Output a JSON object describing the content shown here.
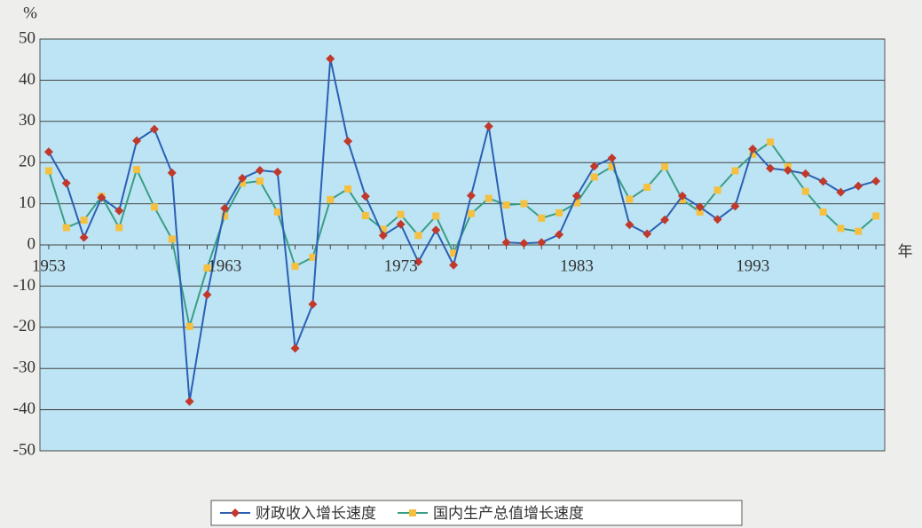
{
  "chart_data": {
    "type": "line",
    "y_unit": "%",
    "x_unit": "年",
    "x": [
      1953,
      1954,
      1955,
      1956,
      1957,
      1958,
      1959,
      1960,
      1961,
      1962,
      1963,
      1964,
      1965,
      1966,
      1967,
      1968,
      1969,
      1970,
      1971,
      1972,
      1973,
      1974,
      1975,
      1976,
      1977,
      1978,
      1979,
      1980,
      1981,
      1982,
      1983,
      1984,
      1985,
      1986,
      1987,
      1988,
      1989,
      1990,
      1991,
      1992,
      1993,
      1994,
      1995,
      1996,
      1997,
      1998,
      1999,
      2000
    ],
    "xlim": [
      1952.5,
      2000.5
    ],
    "xticks": [
      1953,
      1963,
      1973,
      1983,
      1993
    ],
    "ylim": [
      -50,
      50
    ],
    "yticks": [
      -50,
      -40,
      -30,
      -20,
      -10,
      0,
      10,
      20,
      30,
      40,
      50
    ],
    "grid": true,
    "legend": "bottom",
    "series": [
      {
        "name": "财政收入增长速度",
        "color": "#2b5fb4",
        "marker_color": "#c0392b",
        "marker": "diamond",
        "values": [
          22.6,
          15,
          1.8,
          11.5,
          8.3,
          25.3,
          28.1,
          17.5,
          -38,
          -12.1,
          8.9,
          16.2,
          18.1,
          17.7,
          -25.1,
          -14.4,
          45.2,
          25.2,
          11.8,
          2.3,
          5,
          -4.1,
          3.6,
          -4.9,
          12,
          28.8,
          0.6,
          0.4,
          0.6,
          2.5,
          11.9,
          19.1,
          21.1,
          4.9,
          2.7,
          6.1,
          11.9,
          9.2,
          6.2,
          9.4,
          23.3,
          18.6,
          18.1,
          17.3,
          15.4,
          12.8,
          14.3,
          15.5
        ]
      },
      {
        "name": "国内生产总值增长速度",
        "color": "#3a9e86",
        "marker_color": "#f5c040",
        "marker": "square",
        "values": [
          18,
          4.2,
          6,
          11.8,
          4.2,
          18.3,
          9.2,
          1.4,
          -19.8,
          -5.6,
          7,
          15,
          15.5,
          8,
          -5.2,
          -3,
          11,
          13.6,
          7.1,
          3.8,
          7.4,
          2.3,
          7,
          -2,
          7.6,
          11.3,
          9.7,
          10,
          6.5,
          7.8,
          10.2,
          16.5,
          19,
          11.1,
          14,
          19,
          11,
          8,
          13.3,
          18,
          22,
          25,
          19,
          13,
          8,
          4,
          3.3,
          7
        ]
      }
    ]
  }
}
